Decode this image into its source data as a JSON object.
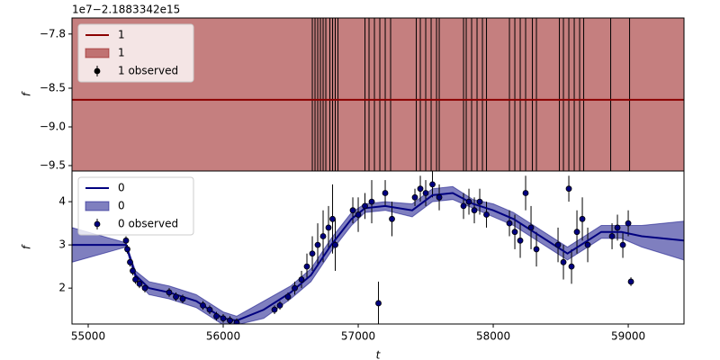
{
  "chart_data": [
    {
      "type": "line",
      "offset_text": "1e7−2.1883342e15",
      "ylabel": "f",
      "xlim": [
        54880,
        59413
      ],
      "ylim": [
        -9.57,
        -7.593
      ],
      "yticks": [
        {
          "value": -7.8,
          "label": "−7.8"
        },
        {
          "value": -8.5,
          "label": "−8.5"
        },
        {
          "value": -9.0,
          "label": "−9.0"
        },
        {
          "value": -9.5,
          "label": "−9.5"
        }
      ],
      "series": [
        {
          "name": "1",
          "color": "#8b0000",
          "x": [
            54880,
            59413
          ],
          "values": [
            -8.65,
            -8.65
          ]
        }
      ],
      "band": {
        "name": "1",
        "color": "#8b0000",
        "x": [
          54880,
          59413
        ],
        "lower": [
          -9.8,
          -9.8
        ],
        "upper": [
          -7.4,
          -7.4
        ]
      },
      "observed": {
        "name": "1 observed",
        "color": "#000000",
        "x": [
          56660,
          56680,
          56700,
          56720,
          56740,
          56760,
          56790,
          56810,
          56830,
          56850,
          57050,
          57080,
          57120,
          57160,
          57200,
          57240,
          57430,
          57460,
          57500,
          57540,
          57580,
          57600,
          57780,
          57800,
          57840,
          57880,
          57920,
          57950,
          58120,
          58160,
          58200,
          58240,
          58290,
          58320,
          58490,
          58520,
          58560,
          58600,
          58640,
          58670,
          58870,
          59010
        ]
      }
    },
    {
      "type": "line",
      "ylabel": "f",
      "xlabel": "t",
      "xlim": [
        54880,
        59413
      ],
      "ylim": [
        1.17,
        4.71
      ],
      "xticks": [
        55000,
        56000,
        57000,
        58000,
        59000
      ],
      "yticks": [
        2,
        3,
        4
      ],
      "series": [
        {
          "name": "0",
          "color": "#00007f",
          "x": [
            54880,
            55280,
            55350,
            55450,
            55600,
            55800,
            56000,
            56100,
            56300,
            56500,
            56650,
            56800,
            56950,
            57050,
            57200,
            57400,
            57550,
            57700,
            57850,
            58000,
            58150,
            58300,
            58450,
            58550,
            58650,
            58800,
            58950,
            59100,
            59413
          ],
          "values": [
            3.0,
            3.0,
            2.3,
            2.0,
            1.9,
            1.7,
            1.3,
            1.25,
            1.5,
            1.9,
            2.3,
            3.0,
            3.6,
            3.85,
            3.9,
            3.8,
            4.15,
            4.2,
            3.95,
            3.8,
            3.6,
            3.3,
            3.0,
            2.8,
            3.0,
            3.3,
            3.3,
            3.2,
            3.1
          ]
        }
      ],
      "band": {
        "name": "0",
        "color": "#00007f",
        "x": [
          54880,
          55280,
          55350,
          55450,
          55600,
          55800,
          56000,
          56100,
          56300,
          56500,
          56650,
          56800,
          56950,
          57050,
          57200,
          57400,
          57550,
          57700,
          57850,
          58000,
          58150,
          58300,
          58450,
          58550,
          58650,
          58800,
          58950,
          59100,
          59413
        ],
        "lower": [
          2.6,
          2.95,
          2.2,
          1.85,
          1.75,
          1.55,
          1.15,
          1.15,
          1.3,
          1.75,
          2.15,
          2.85,
          3.45,
          3.75,
          3.8,
          3.65,
          4.0,
          4.05,
          3.85,
          3.65,
          3.45,
          3.15,
          2.85,
          2.65,
          2.85,
          3.15,
          3.15,
          2.95,
          2.65
        ],
        "upper": [
          3.4,
          3.05,
          2.4,
          2.15,
          2.05,
          1.85,
          1.45,
          1.35,
          1.7,
          2.05,
          2.45,
          3.15,
          3.75,
          3.95,
          4.0,
          3.95,
          4.3,
          4.35,
          4.05,
          3.95,
          3.75,
          3.45,
          3.15,
          2.95,
          3.15,
          3.45,
          3.45,
          3.45,
          3.55
        ]
      },
      "observed": {
        "name": "0 observed",
        "color": "#00007f",
        "x": [
          55280,
          55290,
          55310,
          55330,
          55350,
          55380,
          55420,
          55600,
          55650,
          55700,
          55850,
          55900,
          55950,
          56000,
          56050,
          56100,
          56380,
          56420,
          56480,
          56530,
          56580,
          56620,
          56660,
          56700,
          56740,
          56780,
          56810,
          56830,
          56960,
          57000,
          57050,
          57100,
          57150,
          57200,
          57250,
          57420,
          57460,
          57500,
          57550,
          57600,
          57780,
          57820,
          57860,
          57900,
          57950,
          58120,
          58160,
          58200,
          58240,
          58280,
          58320,
          58480,
          58520,
          58560,
          58580,
          58620,
          58660,
          58700,
          58880,
          58920,
          58960,
          59000,
          59020
        ],
        "values": [
          3.1,
          2.9,
          2.6,
          2.4,
          2.2,
          2.1,
          2.0,
          1.9,
          1.8,
          1.75,
          1.6,
          1.5,
          1.35,
          1.3,
          1.25,
          1.2,
          1.5,
          1.6,
          1.8,
          2.0,
          2.2,
          2.5,
          2.8,
          3.0,
          3.2,
          3.4,
          3.6,
          3.0,
          3.8,
          3.7,
          3.9,
          4.0,
          1.65,
          4.2,
          3.6,
          4.1,
          4.3,
          4.2,
          4.4,
          4.1,
          3.9,
          4.0,
          3.8,
          4.0,
          3.7,
          3.5,
          3.3,
          3.1,
          4.2,
          3.4,
          2.9,
          3.0,
          2.6,
          4.3,
          2.5,
          3.3,
          3.6,
          3.0,
          3.2,
          3.4,
          3.0,
          3.5,
          2.15
        ],
        "errors": [
          0.1,
          0.1,
          0.1,
          0.1,
          0.1,
          0.1,
          0.1,
          0.1,
          0.1,
          0.1,
          0.1,
          0.1,
          0.1,
          0.1,
          0.1,
          0.1,
          0.1,
          0.1,
          0.1,
          0.15,
          0.2,
          0.3,
          0.4,
          0.5,
          0.6,
          0.5,
          0.8,
          0.6,
          0.3,
          0.4,
          0.3,
          0.5,
          0.5,
          0.3,
          0.4,
          0.2,
          0.3,
          0.3,
          0.3,
          0.3,
          0.3,
          0.3,
          0.3,
          0.3,
          0.3,
          0.3,
          0.4,
          0.4,
          0.4,
          0.5,
          0.4,
          0.4,
          0.4,
          0.3,
          0.4,
          0.5,
          0.5,
          0.4,
          0.3,
          0.3,
          0.3,
          0.3,
          0.1
        ]
      }
    }
  ]
}
